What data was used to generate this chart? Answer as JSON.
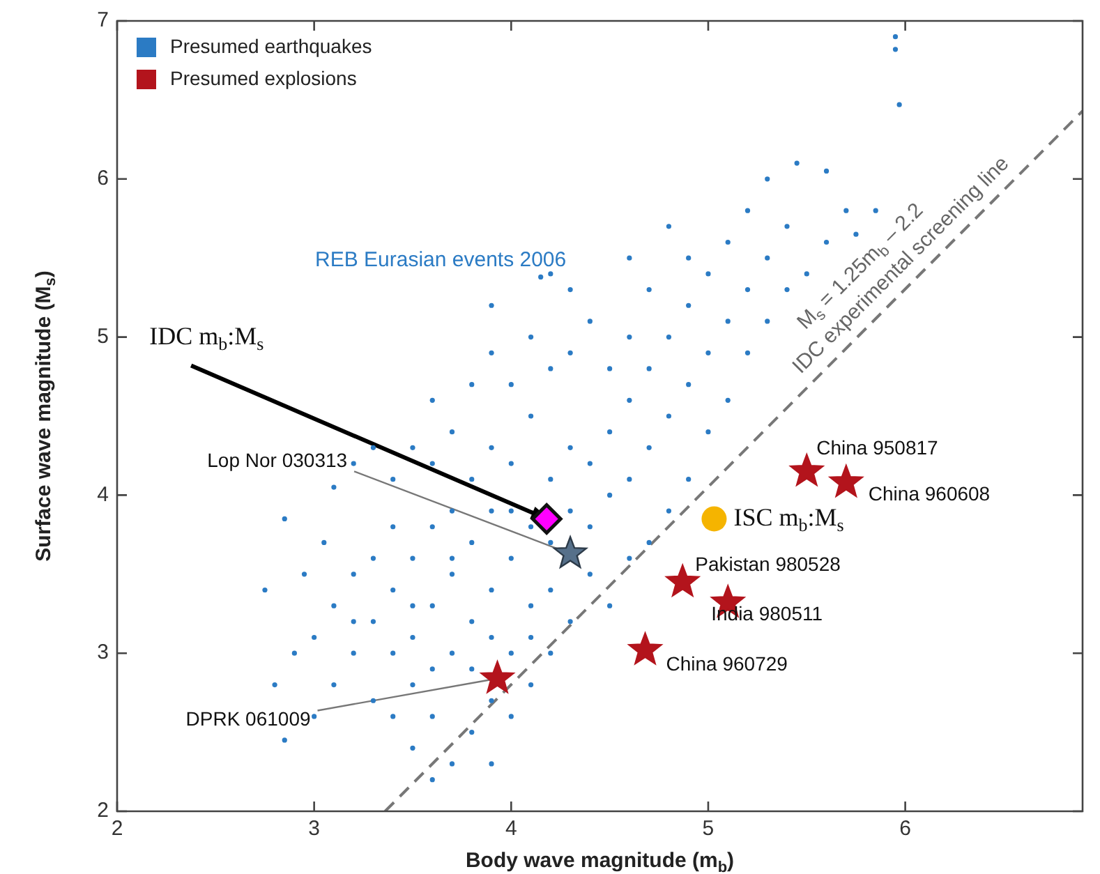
{
  "chart_data": {
    "type": "scatter",
    "xlabel": "Body wave magnitude (m$_{b}$)",
    "ylabel": "Surface wave magnitude (M$_{s}$)",
    "xlim": [
      2,
      6.9
    ],
    "ylim": [
      2,
      7
    ],
    "xticks": [
      2,
      3,
      4,
      5,
      6
    ],
    "yticks": [
      2,
      3,
      4,
      5,
      6,
      7
    ],
    "legend": "top left",
    "series": [
      {
        "name": "Presumed earthquakes",
        "color": "#2b7bc4",
        "marker": "circle",
        "x": [
          3.2,
          3.3,
          3.4,
          3.5,
          3.6,
          3.7,
          3.8,
          3.9,
          4.0,
          4.1,
          3.5,
          3.6,
          3.7,
          3.8,
          3.9,
          4.0,
          4.1,
          4.2,
          3.3,
          3.4,
          3.5,
          3.6,
          3.7,
          3.8,
          3.9,
          4.0,
          4.1,
          4.2,
          4.3,
          3.1,
          3.2,
          3.0,
          3.1,
          3.3,
          3.4,
          3.6,
          3.8,
          3.9,
          4.0,
          3.5,
          3.7,
          3.6,
          3.9,
          4.1,
          4.2,
          4.3,
          4.4,
          4.4,
          3.7,
          3.5,
          3.4,
          3.2,
          2.8,
          2.85,
          2.85,
          2.95,
          2.9,
          3.0,
          3.05,
          3.1,
          3.2,
          3.3,
          2.75,
          3.4,
          3.5,
          3.6,
          3.7,
          3.8,
          3.9,
          4.0,
          4.1,
          4.2,
          4.3,
          4.4,
          4.5,
          4.5,
          4.6,
          4.6,
          4.7,
          4.7,
          4.8,
          3.6,
          3.8,
          3.9,
          4.0,
          4.1,
          4.2,
          4.3,
          4.4,
          4.5,
          4.6,
          4.8,
          4.9,
          4.9,
          5.0,
          5.0,
          5.1,
          4.2,
          4.15,
          3.9,
          4.3,
          4.6,
          4.7,
          4.8,
          4.9,
          5.1,
          5.2,
          5.2,
          5.3,
          5.3,
          5.4,
          5.45,
          5.6,
          5.5,
          5.6,
          5.7,
          5.1,
          5.2,
          5.3,
          5.4,
          5.0,
          4.9,
          4.8,
          4.7,
          4.6,
          4.5,
          5.95,
          5.95,
          5.97,
          5.75,
          5.85
        ],
        "values": [
          3.0,
          3.2,
          3.4,
          3.1,
          3.3,
          3.5,
          3.2,
          3.4,
          3.6,
          3.3,
          2.8,
          2.9,
          3.0,
          2.9,
          3.1,
          3.0,
          3.1,
          3.4,
          3.6,
          3.8,
          3.6,
          3.8,
          3.9,
          3.7,
          3.9,
          3.9,
          3.8,
          3.7,
          3.9,
          3.3,
          3.5,
          3.1,
          2.8,
          2.7,
          2.6,
          2.6,
          2.5,
          2.7,
          2.6,
          2.4,
          2.3,
          2.2,
          2.3,
          2.8,
          3.0,
          3.2,
          3.5,
          3.8,
          3.6,
          3.3,
          3.0,
          3.2,
          2.8,
          2.45,
          3.85,
          3.5,
          3.0,
          2.6,
          3.7,
          4.05,
          4.2,
          4.3,
          3.4,
          4.1,
          4.3,
          4.2,
          4.4,
          4.1,
          4.3,
          4.2,
          4.5,
          4.1,
          4.3,
          4.2,
          4.0,
          4.4,
          4.1,
          4.6,
          4.3,
          4.8,
          4.5,
          4.6,
          4.7,
          4.9,
          4.7,
          5.0,
          4.8,
          4.9,
          5.1,
          4.8,
          5.0,
          5.0,
          4.7,
          5.2,
          4.9,
          5.4,
          5.1,
          5.4,
          5.38,
          5.2,
          5.3,
          5.5,
          5.3,
          5.7,
          5.5,
          5.6,
          5.3,
          5.8,
          5.5,
          6.0,
          5.7,
          6.1,
          6.05,
          5.4,
          5.6,
          5.8,
          4.6,
          4.9,
          5.1,
          5.3,
          4.4,
          4.1,
          3.9,
          3.7,
          3.6,
          3.3,
          6.9,
          6.82,
          6.47,
          5.65,
          5.8
        ]
      },
      {
        "name": "Presumed explosions",
        "color": "#b3141c",
        "marker": "star",
        "x": [
          5.5,
          5.7,
          4.87,
          5.1,
          4.68,
          3.93
        ],
        "values": [
          4.15,
          4.08,
          3.45,
          3.32,
          3.02,
          2.84
        ]
      },
      {
        "color": "#56708a",
        "marker": "star",
        "x": [
          4.3
        ],
        "values": [
          3.63
        ]
      },
      {
        "color": "#ff00ff",
        "marker": "diamond",
        "x": [
          4.18
        ],
        "values": [
          3.85
        ]
      },
      {
        "color": "#f5b400",
        "marker": "circle",
        "x": [
          5.03
        ],
        "values": [
          3.85
        ]
      },
      {
        "type": "line",
        "color": "#777777",
        "line_style": "dashed",
        "marker": "none",
        "x": [
          3.36,
          6.9
        ],
        "values": [
          2.0,
          6.43
        ]
      }
    ],
    "annotations": [
      "REB Eurasian events 2006",
      {
        "text": "IDC m$_{b}$:M$_{s}$",
        "x": 4.18,
        "y": 3.85
      },
      {
        "text": "ISC m$_{b}$:M$_{s}$",
        "x": 5.03,
        "y": 3.85
      },
      {
        "text": "Lop Nor 030313",
        "x": 4.3,
        "y": 3.63
      },
      {
        "text": "China 950817",
        "x": 5.5,
        "y": 4.15
      },
      {
        "text": "China 960608",
        "x": 5.7,
        "y": 4.08
      },
      {
        "text": "Pakistan 980528",
        "x": 4.87,
        "y": 3.45
      },
      {
        "text": "India 980511",
        "x": 5.1,
        "y": 3.32
      },
      {
        "text": "China 960729",
        "x": 4.68,
        "y": 3.02
      },
      {
        "text": "DPRK 061009",
        "x": 3.93,
        "y": 2.84
      },
      "M$_{s}$ = 1.25m$_{b}$ – 2.2",
      "IDC experimental screening line"
    ]
  }
}
